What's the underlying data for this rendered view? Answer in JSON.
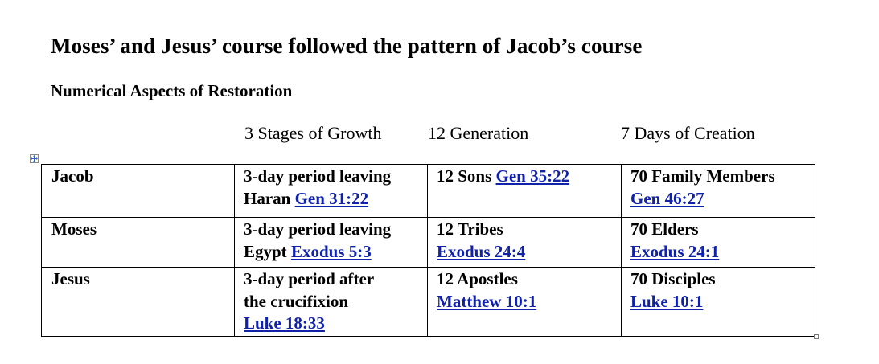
{
  "title": "Moses’ and Jesus’ course followed the pattern of Jacob’s course",
  "subtitle": "Numerical Aspects of Restoration",
  "column_headers": [
    "3 Stages of Growth",
    "12 Generation",
    "7 Days of Creation"
  ],
  "rows": [
    {
      "name": "Jacob",
      "stage_lines": [
        "3-day period leaving",
        "Haran "
      ],
      "stage_ref": "Gen 31:22",
      "gen_text": "12 Sons ",
      "gen_ref": "Gen 35:22",
      "days_text": "70 Family Members",
      "days_ref": "Gen 46:27"
    },
    {
      "name": "Moses",
      "stage_lines": [
        "3-day period leaving",
        "Egypt "
      ],
      "stage_ref": "Exodus 5:3",
      "gen_text": "12 Tribes",
      "gen_ref": "Exodus 24:4",
      "days_text": "70 Elders",
      "days_ref": "Exodus 24:1"
    },
    {
      "name": "Jesus",
      "stage_lines": [
        "3-day period after",
        "the crucifixion"
      ],
      "stage_ref": "Luke 18:33",
      "gen_text": "12 Apostles",
      "gen_ref": "Matthew 10:1",
      "days_text": "70 Disciples",
      "days_ref": "Luke 10:1"
    }
  ],
  "colors": {
    "link": "#1122aa",
    "border": "#000000"
  }
}
